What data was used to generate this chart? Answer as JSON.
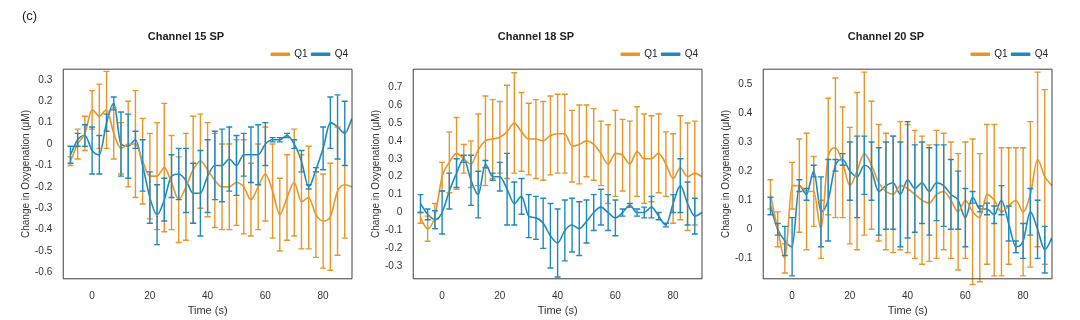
{
  "chart_data": [
    {
      "type": "line",
      "title": "Channel 15 SP",
      "xlabel": "Time (s)",
      "ylabel": "Change in Oxygenation (μM)",
      "annotations": [
        "(c)"
      ],
      "legend": "top right",
      "marker": "none",
      "x": [
        -7.5,
        -5,
        -2.5,
        0,
        2.5,
        5,
        7.5,
        10,
        12.5,
        15,
        17.5,
        20,
        22.5,
        25,
        27.5,
        30,
        32.5,
        35,
        37.5,
        40,
        42.5,
        45,
        47.5,
        50,
        52.5,
        55,
        57.5,
        60,
        62.5,
        65,
        67.5,
        70,
        72.5,
        75,
        77.5,
        80,
        82.5,
        85,
        87.5,
        90
      ],
      "xlim": [
        -10,
        90
      ],
      "xticks": [
        0,
        20,
        40,
        60,
        80
      ],
      "ylim": [
        -0.63,
        0.35
      ],
      "yticks": [
        -0.6,
        -0.5,
        -0.4,
        -0.3,
        -0.2,
        -0.1,
        0,
        0.1,
        0.2,
        0.3
      ],
      "series": [
        {
          "name": "Q1",
          "color": "#e8962a",
          "values": [
            -0.08,
            0.0,
            0.05,
            0.16,
            0.13,
            0.16,
            0.05,
            -0.02,
            0.0,
            0.0,
            -0.08,
            -0.15,
            -0.15,
            -0.11,
            -0.18,
            -0.26,
            -0.2,
            -0.12,
            -0.08,
            -0.12,
            -0.17,
            -0.2,
            -0.2,
            -0.18,
            -0.2,
            -0.26,
            -0.2,
            -0.14,
            -0.22,
            -0.33,
            -0.25,
            -0.18,
            -0.27,
            -0.25,
            -0.33,
            -0.36,
            -0.34,
            -0.22,
            -0.19,
            -0.2
          ],
          "errors": [
            0.02,
            0.07,
            0.08,
            0.09,
            0.15,
            0.18,
            0.12,
            0.12,
            0.2,
            0.25,
            0.2,
            0.2,
            0.25,
            0.3,
            0.22,
            0.2,
            0.25,
            0.25,
            0.22,
            0.22,
            0.22,
            0.2,
            0.2,
            0.2,
            0.22,
            0.17,
            0.2,
            0.22,
            0.22,
            0.17,
            0.2,
            0.25,
            0.22,
            0.24,
            0.2,
            0.22,
            0.25,
            0.3,
            0.25,
            null
          ]
        },
        {
          "name": "Q4",
          "color": "#1f8ac0",
          "values": [
            -0.05,
            0.02,
            0.04,
            -0.03,
            -0.05,
            0.1,
            0.19,
            0.0,
            -0.01,
            0.02,
            -0.1,
            -0.25,
            -0.33,
            -0.26,
            -0.15,
            -0.14,
            -0.17,
            -0.23,
            -0.23,
            -0.15,
            -0.1,
            -0.1,
            -0.07,
            -0.1,
            -0.05,
            -0.05,
            -0.05,
            0.0,
            0.02,
            0.02,
            0.04,
            0.0,
            -0.08,
            -0.2,
            -0.12,
            -0.02,
            0.1,
            0.08,
            0.05,
            0.12
          ],
          "errors": [
            0.04,
            0.03,
            0.05,
            0.11,
            0.09,
            0.04,
            0.03,
            0.15,
            0.15,
            0.04,
            0.12,
            0.12,
            0.14,
            0.1,
            0.1,
            0.12,
            0.15,
            0.14,
            0.2,
            0.17,
            0.16,
            0.17,
            0.15,
            0.14,
            0.1,
            0.13,
            0.14,
            0.1,
            0.01,
            0.01,
            0.01,
            0.02,
            0.05,
            0.01,
            0.01,
            0.1,
            0.12,
            0.15,
            0.15,
            null
          ]
        }
      ]
    },
    {
      "type": "line",
      "title": "Channel 18 SP",
      "xlabel": "Time (s)",
      "ylabel": "Change in Oxygenation (μM)",
      "legend": "top right",
      "marker": "none",
      "x": [
        -7.5,
        -5,
        -2.5,
        0,
        2.5,
        5,
        7.5,
        10,
        12.5,
        15,
        17.5,
        20,
        22.5,
        25,
        27.5,
        30,
        32.5,
        35,
        37.5,
        40,
        42.5,
        45,
        47.5,
        50,
        52.5,
        55,
        57.5,
        60,
        62.5,
        65,
        67.5,
        70,
        72.5,
        75,
        77.5,
        80,
        82.5,
        85,
        87.5,
        90
      ],
      "xlim": [
        -10,
        90
      ],
      "xticks": [
        0,
        20,
        40,
        60,
        80
      ],
      "ylim": [
        -0.37,
        0.8
      ],
      "yticks": [
        -0.3,
        -0.2,
        -0.1,
        0,
        0.1,
        0.2,
        0.3,
        0.4,
        0.5,
        0.6,
        0.7
      ],
      "series": [
        {
          "name": "Q1",
          "color": "#e8962a",
          "values": [
            -0.03,
            -0.09,
            -0.02,
            0.2,
            0.28,
            0.33,
            0.3,
            0.27,
            0.35,
            0.4,
            0.41,
            0.42,
            0.45,
            0.5,
            0.45,
            0.41,
            0.41,
            0.4,
            0.43,
            0.44,
            0.44,
            0.37,
            0.38,
            0.4,
            0.38,
            0.33,
            0.27,
            0.33,
            0.32,
            0.27,
            0.34,
            0.3,
            0.3,
            0.33,
            0.27,
            0.19,
            0.25,
            0.2,
            0.22,
            0.2
          ],
          "errors": [
            0.03,
            0.07,
            0.07,
            0.08,
            0.17,
            0.2,
            0.08,
            0.13,
            0.2,
            0.25,
            0.22,
            0.2,
            0.26,
            0.28,
            0.22,
            0.2,
            0.22,
            0.22,
            0.22,
            0.22,
            0.22,
            0.2,
            0.22,
            0.2,
            0.2,
            0.18,
            0.22,
            0.24,
            0.2,
            0.24,
            0.25,
            0.25,
            0.24,
            0.22,
            0.18,
            0.25,
            0.29,
            0.3,
            0.29,
            null
          ]
        },
        {
          "name": "Q4",
          "color": "#1f8ac0",
          "values": [
            0.05,
            -0.01,
            -0.04,
            0.0,
            0.12,
            0.22,
            0.3,
            0.18,
            0.1,
            0.27,
            0.2,
            0.2,
            0.13,
            0.05,
            0.09,
            -0.02,
            -0.03,
            -0.06,
            -0.13,
            -0.17,
            -0.1,
            -0.07,
            -0.09,
            -0.05,
            0.0,
            0.03,
            0.0,
            -0.03,
            0.0,
            0.04,
            0.0,
            0.0,
            0.03,
            -0.02,
            -0.07,
            0.05,
            0.15,
            0.05,
            -0.02,
            0.0
          ],
          "errors": [
            0.05,
            0.03,
            0.05,
            0.12,
            0.1,
            0.08,
            0.02,
            0.14,
            0.13,
            0.02,
            0.02,
            0.08,
            0.2,
            0.12,
            0.1,
            0.12,
            0.12,
            0.14,
            0.18,
            0.19,
            0.17,
            0.15,
            0.15,
            0.12,
            0.1,
            0.1,
            0.1,
            0.1,
            0.02,
            0.01,
            0.02,
            0.03,
            0.06,
            0.02,
            0.01,
            0.05,
            0.15,
            0.12,
            0.1,
            null
          ]
        }
      ]
    },
    {
      "type": "line",
      "title": "Channel 20 SP",
      "xlabel": "Time (s)",
      "ylabel": "Change in Oxygenation (μM)",
      "legend": "top right",
      "marker": "none",
      "x": [
        -7.5,
        -5,
        -2.5,
        0,
        2.5,
        5,
        7.5,
        10,
        12.5,
        15,
        17.5,
        20,
        22.5,
        25,
        27.5,
        30,
        32.5,
        35,
        37.5,
        40,
        42.5,
        45,
        47.5,
        50,
        52.5,
        55,
        57.5,
        60,
        62.5,
        65,
        67.5,
        70,
        72.5,
        75,
        77.5,
        80,
        82.5,
        85,
        87.5,
        90
      ],
      "xlim": [
        -10,
        90
      ],
      "xticks": [
        0,
        20,
        40,
        60,
        80
      ],
      "ylim": [
        -0.17,
        0.55
      ],
      "yticks": [
        -0.1,
        0,
        0.1,
        0.2,
        0.3,
        0.4,
        0.5
      ],
      "series": [
        {
          "name": "Q1",
          "color": "#e8962a",
          "values": [
            0.12,
            0.0,
            -0.1,
            0.15,
            0.15,
            0.13,
            0.13,
            0.0,
            0.25,
            0.28,
            0.23,
            0.15,
            0.2,
            0.26,
            0.22,
            0.16,
            0.13,
            0.12,
            0.15,
            0.14,
            0.12,
            0.1,
            0.09,
            0.12,
            0.13,
            0.1,
            0.06,
            0.1,
            0.06,
            0.04,
            0.12,
            0.1,
            0.06,
            0.08,
            0.1,
            0.06,
            0.12,
            0.24,
            0.18,
            0.15
          ],
          "errors": [
            0.05,
            0.06,
            0.05,
            0.08,
            0.16,
            0.2,
            0.12,
            0.1,
            0.2,
            0.24,
            0.19,
            0.2,
            0.27,
            0.28,
            0.22,
            0.2,
            0.2,
            0.2,
            0.22,
            0.22,
            0.22,
            0.22,
            0.2,
            0.22,
            0.2,
            0.2,
            0.2,
            0.2,
            0.25,
            0.22,
            0.24,
            0.26,
            0.22,
            0.2,
            0.18,
            0.22,
            0.25,
            0.3,
            0.3,
            null
          ]
        },
        {
          "name": "Q4",
          "color": "#1f8ac0",
          "values": [
            0.08,
            0.0,
            -0.04,
            -0.06,
            0.15,
            0.12,
            0.2,
            0.06,
            0.1,
            0.22,
            0.24,
            0.2,
            0.18,
            0.22,
            0.2,
            0.13,
            0.15,
            0.16,
            0.12,
            0.17,
            0.14,
            0.16,
            0.13,
            0.16,
            0.15,
            0.12,
            0.1,
            0.04,
            0.11,
            0.07,
            0.07,
            0.05,
            0.1,
            0.02,
            -0.06,
            -0.04,
            0.06,
            0.0,
            -0.07,
            -0.03
          ],
          "errors": [
            0.03,
            0.02,
            0.05,
            0.1,
            0.02,
            0.02,
            0.02,
            0.12,
            0.14,
            0.02,
            0.02,
            0.1,
            0.14,
            0.1,
            0.1,
            0.15,
            0.15,
            0.16,
            0.18,
            0.2,
            0.15,
            0.14,
            0.15,
            0.13,
            0.14,
            0.12,
            0.1,
            0.1,
            0.02,
            0.01,
            0.02,
            0.03,
            0.05,
            0.06,
            0.02,
            0.06,
            0.08,
            0.1,
            0.08,
            null
          ]
        }
      ]
    }
  ]
}
